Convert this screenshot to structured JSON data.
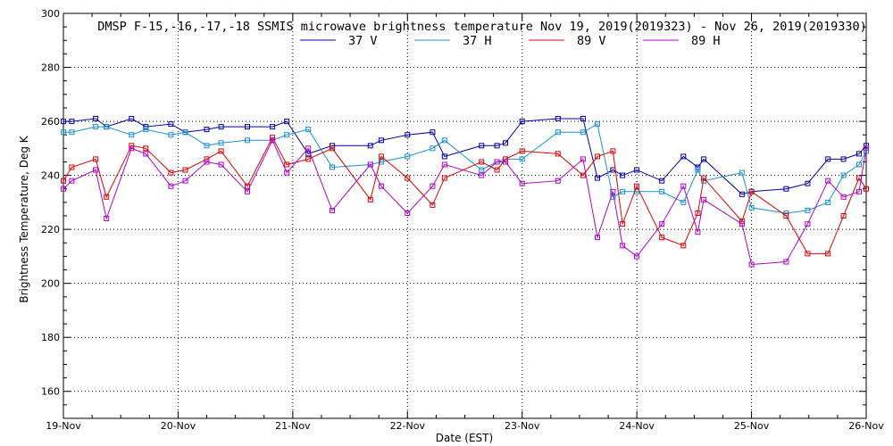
{
  "chart_data": {
    "type": "line",
    "title": "DMSP F-15,-16,-17,-18 SSMIS microwave brightness temperature Nov 19, 2019(2019323) - Nov 26, 2019(2019330)",
    "xlabel": "Date (EST)",
    "ylabel": "Brightness Temperature, Deg K",
    "xlim": [
      "2019-11-19T00:00",
      "2019-11-26T00:00"
    ],
    "ylim": [
      150,
      300
    ],
    "x_ticks": [
      "19-Nov",
      "20-Nov",
      "21-Nov",
      "22-Nov",
      "23-Nov",
      "24-Nov",
      "25-Nov",
      "26-Nov"
    ],
    "y_ticks": [
      160,
      180,
      200,
      220,
      240,
      260,
      280,
      300
    ],
    "grid": true,
    "legend_position": "top-center",
    "series": [
      {
        "name": "37 V",
        "color": "#0000aa",
        "x": [
          "2019-11-19T00:00",
          "2019-11-19T01:45",
          "2019-11-19T06:45",
          "2019-11-19T09:00",
          "2019-11-19T14:15",
          "2019-11-19T17:15",
          "2019-11-19T22:30",
          "2019-11-20T01:30",
          "2019-11-20T06:00",
          "2019-11-20T09:00",
          "2019-11-20T14:30",
          "2019-11-20T19:45",
          "2019-11-20T22:45",
          "2019-11-21T03:15",
          "2019-11-21T08:15",
          "2019-11-21T16:15",
          "2019-11-21T18:30",
          "2019-11-22T00:00",
          "2019-11-22T05:15",
          "2019-11-22T07:45",
          "2019-11-22T15:30",
          "2019-11-22T18:45",
          "2019-11-22T20:30",
          "2019-11-23T00:00",
          "2019-11-23T07:30",
          "2019-11-23T12:45",
          "2019-11-23T15:45",
          "2019-11-23T19:00",
          "2019-11-23T21:00",
          "2019-11-24T00:00",
          "2019-11-24T05:15",
          "2019-11-24T09:45",
          "2019-11-24T12:45",
          "2019-11-24T14:00",
          "2019-11-24T22:00",
          "2019-11-25T00:00",
          "2019-11-25T07:15",
          "2019-11-25T11:45",
          "2019-11-25T16:00",
          "2019-11-25T19:15",
          "2019-11-25T22:30",
          "2019-11-26T00:00"
        ],
        "values": [
          260,
          260,
          261,
          258,
          261,
          258,
          259,
          256,
          257,
          258,
          258,
          258,
          260,
          248,
          251,
          251,
          253,
          255,
          256,
          247,
          251,
          251,
          252,
          260,
          261,
          261,
          239,
          242,
          240,
          242,
          238,
          247,
          243,
          246,
          233,
          234,
          235,
          237,
          246,
          246,
          248,
          251
        ]
      },
      {
        "name": "37 H",
        "color": "#1a8fd8",
        "x": [
          "2019-11-19T00:00",
          "2019-11-19T01:45",
          "2019-11-19T06:45",
          "2019-11-19T09:00",
          "2019-11-19T14:15",
          "2019-11-19T17:15",
          "2019-11-19T22:30",
          "2019-11-20T01:30",
          "2019-11-20T06:00",
          "2019-11-20T09:00",
          "2019-11-20T14:30",
          "2019-11-20T19:45",
          "2019-11-20T22:45",
          "2019-11-21T03:15",
          "2019-11-21T08:15",
          "2019-11-21T16:15",
          "2019-11-21T18:30",
          "2019-11-22T00:00",
          "2019-11-22T05:15",
          "2019-11-22T07:45",
          "2019-11-22T15:30",
          "2019-11-22T18:45",
          "2019-11-22T20:30",
          "2019-11-23T00:00",
          "2019-11-23T07:30",
          "2019-11-23T12:45",
          "2019-11-23T15:45",
          "2019-11-23T19:00",
          "2019-11-23T21:00",
          "2019-11-24T00:00",
          "2019-11-24T05:15",
          "2019-11-24T09:45",
          "2019-11-24T12:45",
          "2019-11-24T14:00",
          "2019-11-24T22:00",
          "2019-11-25T00:00",
          "2019-11-25T07:15",
          "2019-11-25T11:45",
          "2019-11-25T16:00",
          "2019-11-25T19:15",
          "2019-11-25T22:30",
          "2019-11-26T00:00"
        ],
        "values": [
          256,
          256,
          258,
          258,
          255,
          257,
          255,
          256,
          251,
          252,
          253,
          253,
          255,
          257,
          243,
          244,
          245,
          247,
          250,
          253,
          242,
          245,
          246,
          246,
          256,
          256,
          259,
          232,
          234,
          234,
          234,
          230,
          242,
          238,
          241,
          228,
          226,
          227,
          230,
          240,
          244,
          249
        ]
      },
      {
        "name": "89 V",
        "color": "#dd0000",
        "x": [
          "2019-11-19T00:00",
          "2019-11-19T01:45",
          "2019-11-19T06:45",
          "2019-11-19T09:00",
          "2019-11-19T14:15",
          "2019-11-19T17:15",
          "2019-11-19T22:30",
          "2019-11-20T01:30",
          "2019-11-20T06:00",
          "2019-11-20T09:00",
          "2019-11-20T14:30",
          "2019-11-20T19:45",
          "2019-11-20T22:45",
          "2019-11-21T03:15",
          "2019-11-21T08:15",
          "2019-11-21T16:15",
          "2019-11-21T18:30",
          "2019-11-22T00:00",
          "2019-11-22T05:15",
          "2019-11-22T07:45",
          "2019-11-22T15:30",
          "2019-11-22T18:45",
          "2019-11-22T20:30",
          "2019-11-23T00:00",
          "2019-11-23T07:30",
          "2019-11-23T12:45",
          "2019-11-23T15:45",
          "2019-11-23T19:00",
          "2019-11-23T21:00",
          "2019-11-24T00:00",
          "2019-11-24T05:15",
          "2019-11-24T09:45",
          "2019-11-24T12:45",
          "2019-11-24T14:00",
          "2019-11-24T22:00",
          "2019-11-25T00:00",
          "2019-11-25T07:15",
          "2019-11-25T11:45",
          "2019-11-25T16:00",
          "2019-11-25T19:15",
          "2019-11-25T22:30",
          "2019-11-26T00:00"
        ],
        "values": [
          238,
          243,
          246,
          232,
          251,
          250,
          241,
          242,
          246,
          249,
          236,
          254,
          244,
          246,
          250,
          231,
          247,
          239,
          229,
          239,
          245,
          242,
          246,
          249,
          248,
          240,
          247,
          249,
          222,
          236,
          217,
          214,
          226,
          239,
          223,
          234,
          225,
          211,
          211,
          225,
          239,
          235
        ]
      },
      {
        "name": "89 H",
        "color": "#b000c8",
        "x": [
          "2019-11-19T00:00",
          "2019-11-19T01:45",
          "2019-11-19T06:45",
          "2019-11-19T09:00",
          "2019-11-19T14:15",
          "2019-11-19T17:15",
          "2019-11-19T22:30",
          "2019-11-20T01:30",
          "2019-11-20T06:00",
          "2019-11-20T09:00",
          "2019-11-20T14:30",
          "2019-11-20T19:45",
          "2019-11-20T22:45",
          "2019-11-21T03:15",
          "2019-11-21T08:15",
          "2019-11-21T16:15",
          "2019-11-21T18:30",
          "2019-11-22T00:00",
          "2019-11-22T05:15",
          "2019-11-22T07:45",
          "2019-11-22T15:30",
          "2019-11-22T18:45",
          "2019-11-22T20:30",
          "2019-11-23T00:00",
          "2019-11-23T07:30",
          "2019-11-23T12:45",
          "2019-11-23T15:45",
          "2019-11-23T19:00",
          "2019-11-23T21:00",
          "2019-11-24T00:00",
          "2019-11-24T05:15",
          "2019-11-24T09:45",
          "2019-11-24T12:45",
          "2019-11-24T14:00",
          "2019-11-24T22:00",
          "2019-11-25T00:00",
          "2019-11-25T07:15",
          "2019-11-25T11:45",
          "2019-11-25T16:00",
          "2019-11-25T19:15",
          "2019-11-25T22:30",
          "2019-11-26T00:00"
        ],
        "values": [
          235,
          238,
          242,
          224,
          250,
          248,
          236,
          238,
          245,
          244,
          234,
          253,
          241,
          250,
          227,
          244,
          236,
          226,
          236,
          244,
          240,
          245,
          245,
          237,
          238,
          246,
          217,
          234,
          214,
          210,
          222,
          236,
          219,
          231,
          222,
          207,
          208,
          222,
          238,
          232,
          234,
          250
        ]
      }
    ]
  }
}
